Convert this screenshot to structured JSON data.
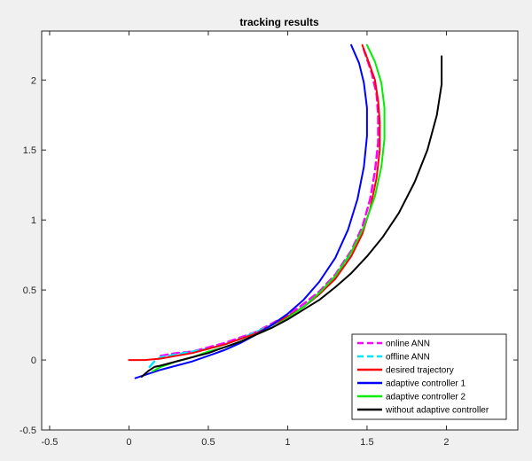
{
  "chart_data": {
    "type": "line",
    "title": "tracking results",
    "xlabel": "",
    "ylabel": "",
    "xlim": [
      -0.55,
      2.45
    ],
    "ylim": [
      -0.5,
      2.35
    ],
    "xticks": [
      -0.5,
      0,
      0.5,
      1,
      1.5,
      2
    ],
    "xtick_labels": [
      "-0.5",
      "0",
      "0.5",
      "1",
      "1.5",
      "2"
    ],
    "yticks": [
      -0.5,
      0,
      0.5,
      1,
      1.5,
      2
    ],
    "ytick_labels": [
      "-0.5",
      "0",
      "0.5",
      "1",
      "1.5",
      "2"
    ],
    "grid": false,
    "legend_position": "bottom-right",
    "series": [
      {
        "name": "online ANN",
        "color": "#ff00ff",
        "style": "dashed",
        "x": [
          0.2,
          0.3,
          0.4,
          0.5,
          0.6,
          0.7,
          0.8,
          0.9,
          1.0,
          1.1,
          1.2,
          1.3,
          1.4,
          1.47,
          1.52,
          1.55,
          1.57,
          1.57,
          1.56,
          1.53,
          1.5,
          1.47
        ],
        "y": [
          0.03,
          0.05,
          0.06,
          0.09,
          0.12,
          0.16,
          0.2,
          0.26,
          0.32,
          0.4,
          0.49,
          0.61,
          0.78,
          0.95,
          1.15,
          1.35,
          1.55,
          1.75,
          1.9,
          2.05,
          2.15,
          2.25
        ]
      },
      {
        "name": "offline ANN",
        "color": "#00e5ff",
        "style": "dashed",
        "x": [
          0.13,
          0.16,
          0.2,
          0.3,
          0.4,
          0.5,
          0.6,
          0.7,
          0.8,
          0.9,
          1.0,
          1.1,
          1.2,
          1.3,
          1.4
        ],
        "y": [
          -0.05,
          -0.01,
          0.02,
          0.04,
          0.06,
          0.08,
          0.11,
          0.15,
          0.2,
          0.25,
          0.31,
          0.38,
          0.47,
          0.59,
          0.75
        ]
      },
      {
        "name": "desired trajectory",
        "color": "#ff0000",
        "style": "solid",
        "x": [
          0.0,
          0.1,
          0.2,
          0.3,
          0.4,
          0.5,
          0.6,
          0.7,
          0.8,
          0.9,
          1.0,
          1.1,
          1.2,
          1.3,
          1.4,
          1.47,
          1.52,
          1.56,
          1.58,
          1.58,
          1.57,
          1.55,
          1.51,
          1.47
        ],
        "y": [
          0.0,
          0.0,
          0.01,
          0.03,
          0.05,
          0.08,
          0.11,
          0.15,
          0.19,
          0.25,
          0.31,
          0.38,
          0.47,
          0.58,
          0.74,
          0.9,
          1.08,
          1.3,
          1.5,
          1.7,
          1.85,
          2.0,
          2.13,
          2.25
        ]
      },
      {
        "name": "adaptive controller 1",
        "color": "#0000ff",
        "style": "solid",
        "x": [
          0.04,
          0.12,
          0.2,
          0.3,
          0.4,
          0.5,
          0.6,
          0.7,
          0.8,
          0.9,
          1.0,
          1.1,
          1.2,
          1.3,
          1.38,
          1.44,
          1.48,
          1.5,
          1.5,
          1.48,
          1.45,
          1.4
        ],
        "y": [
          -0.13,
          -0.1,
          -0.07,
          -0.04,
          -0.01,
          0.03,
          0.07,
          0.12,
          0.18,
          0.25,
          0.33,
          0.43,
          0.56,
          0.73,
          0.93,
          1.15,
          1.38,
          1.6,
          1.8,
          1.98,
          2.12,
          2.25
        ]
      },
      {
        "name": "adaptive controller 2",
        "color": "#00ee00",
        "style": "solid",
        "x": [
          0.15,
          0.2,
          0.3,
          0.4,
          0.5,
          0.6,
          0.7,
          0.8,
          0.9,
          1.0,
          1.1,
          1.2,
          1.3,
          1.4,
          1.48,
          1.55,
          1.59,
          1.61,
          1.61,
          1.59,
          1.55,
          1.5
        ],
        "y": [
          -0.08,
          -0.05,
          -0.01,
          0.02,
          0.06,
          0.09,
          0.13,
          0.18,
          0.23,
          0.3,
          0.38,
          0.48,
          0.6,
          0.77,
          0.95,
          1.17,
          1.38,
          1.58,
          1.8,
          1.98,
          2.13,
          2.25
        ]
      },
      {
        "name": "without adaptive controller",
        "color": "#000000",
        "style": "solid",
        "x": [
          0.08,
          0.12,
          0.16,
          0.2,
          0.3,
          0.4,
          0.5,
          0.6,
          0.7,
          0.8,
          0.9,
          1.0,
          1.1,
          1.2,
          1.3,
          1.4,
          1.5,
          1.6,
          1.7,
          1.8,
          1.88,
          1.94,
          1.97,
          1.97
        ],
        "y": [
          -0.12,
          -0.08,
          -0.05,
          -0.04,
          -0.01,
          0.02,
          0.05,
          0.09,
          0.13,
          0.18,
          0.23,
          0.29,
          0.36,
          0.43,
          0.52,
          0.62,
          0.74,
          0.88,
          1.05,
          1.27,
          1.5,
          1.75,
          1.97,
          2.17
        ]
      }
    ]
  }
}
